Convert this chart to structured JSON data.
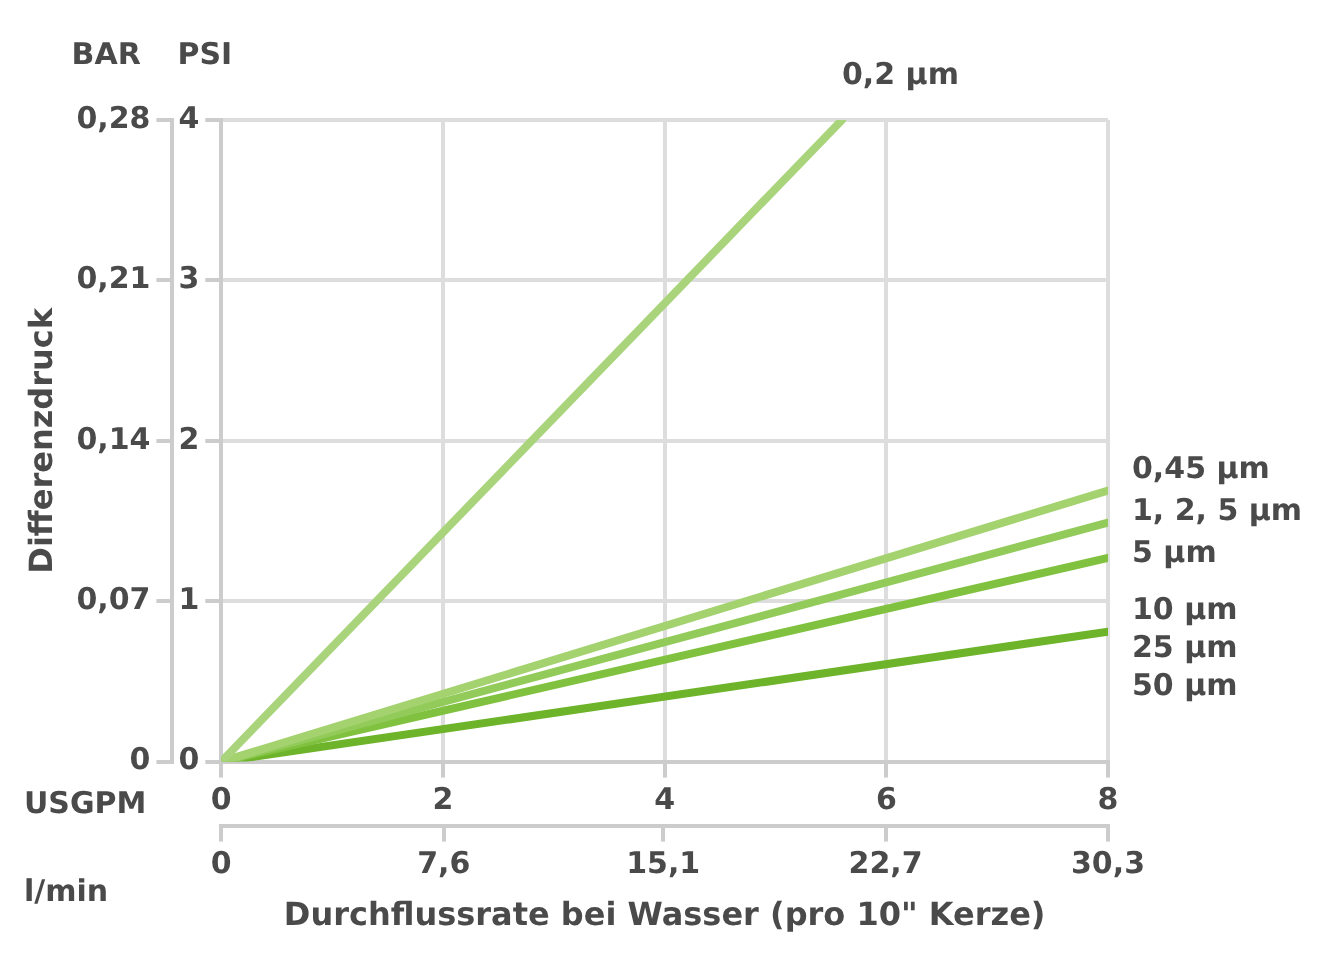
{
  "chart_data": {
    "type": "line",
    "xlabel": "Durchflussrate bei Wasser (pro 10\" Kerze)",
    "x2label": "l/min",
    "ylabel": "Differenzdruck",
    "y2label": "PSI",
    "annotations": [
      "BAR",
      "USGPM",
      "25 µm",
      "50 µm"
    ],
    "xlim": [
      0,
      8
    ],
    "xticks": [
      0,
      2,
      4,
      6,
      8
    ],
    "x2lim": [
      0,
      30.3
    ],
    "x2ticks": [
      0,
      {
        "value": 7.6,
        "label": "7,6"
      },
      {
        "value": 15.1,
        "label": "15,1"
      },
      {
        "value": 22.7,
        "label": "22,7"
      },
      {
        "value": 30.3,
        "label": "30,3"
      }
    ],
    "ylim": [
      0,
      0.28
    ],
    "yticks": [
      0,
      {
        "value": 0.07,
        "label": "0,07"
      },
      {
        "value": 0.14,
        "label": "0,14"
      },
      {
        "value": 0.21,
        "label": "0,21"
      },
      {
        "value": 0.28,
        "label": "0,28"
      }
    ],
    "y2lim": [
      0,
      4
    ],
    "y2ticks": [
      0,
      1,
      2,
      3,
      4
    ],
    "grid": true,
    "marker": "none",
    "line_style": "solid",
    "series": [
      {
        "name": "0,2 µm",
        "color": "#a9d47c",
        "axis": "y2",
        "x": [
          0,
          5.6
        ],
        "values": [
          0,
          4
        ]
      },
      {
        "name": "0,45 µm",
        "color": "#a3d26f",
        "axis": "y2",
        "x": [
          0,
          8
        ],
        "values": [
          0,
          1.69
        ]
      },
      {
        "name": "1, 2, 5 µm",
        "color": "#93cb5a",
        "axis": "y2",
        "x": [
          0,
          8
        ],
        "values": [
          0,
          1.49
        ]
      },
      {
        "name": "5 µm",
        "color": "#80c23f",
        "axis": "y2",
        "x": [
          0,
          8
        ],
        "values": [
          0,
          1.27
        ]
      },
      {
        "name": "10 µm",
        "color": "#6db42a",
        "axis": "y2",
        "x": [
          0,
          8
        ],
        "values": [
          0,
          0.81
        ]
      }
    ]
  }
}
